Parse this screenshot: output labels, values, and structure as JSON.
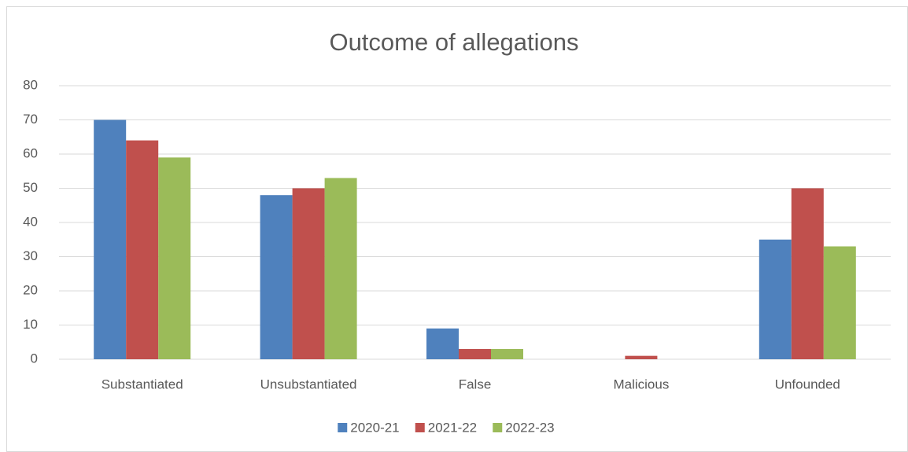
{
  "chart_data": {
    "type": "bar",
    "title": "Outcome of allegations",
    "categories": [
      "Substantiated",
      "Unsubstantiated",
      "False",
      "Malicious",
      "Unfounded"
    ],
    "series": [
      {
        "name": "2020-21",
        "color": "#4f81bd",
        "values": [
          70,
          48,
          9,
          0,
          35
        ]
      },
      {
        "name": "2021-22",
        "color": "#c0504d",
        "values": [
          64,
          50,
          3,
          1,
          50
        ]
      },
      {
        "name": "2022-23",
        "color": "#9bbb59",
        "values": [
          59,
          53,
          3,
          0,
          33
        ]
      }
    ],
    "ylim": [
      0,
      80
    ],
    "yticks": [
      0,
      10,
      20,
      30,
      40,
      50,
      60,
      70,
      80
    ],
    "grid": true,
    "legend": "bottom"
  }
}
